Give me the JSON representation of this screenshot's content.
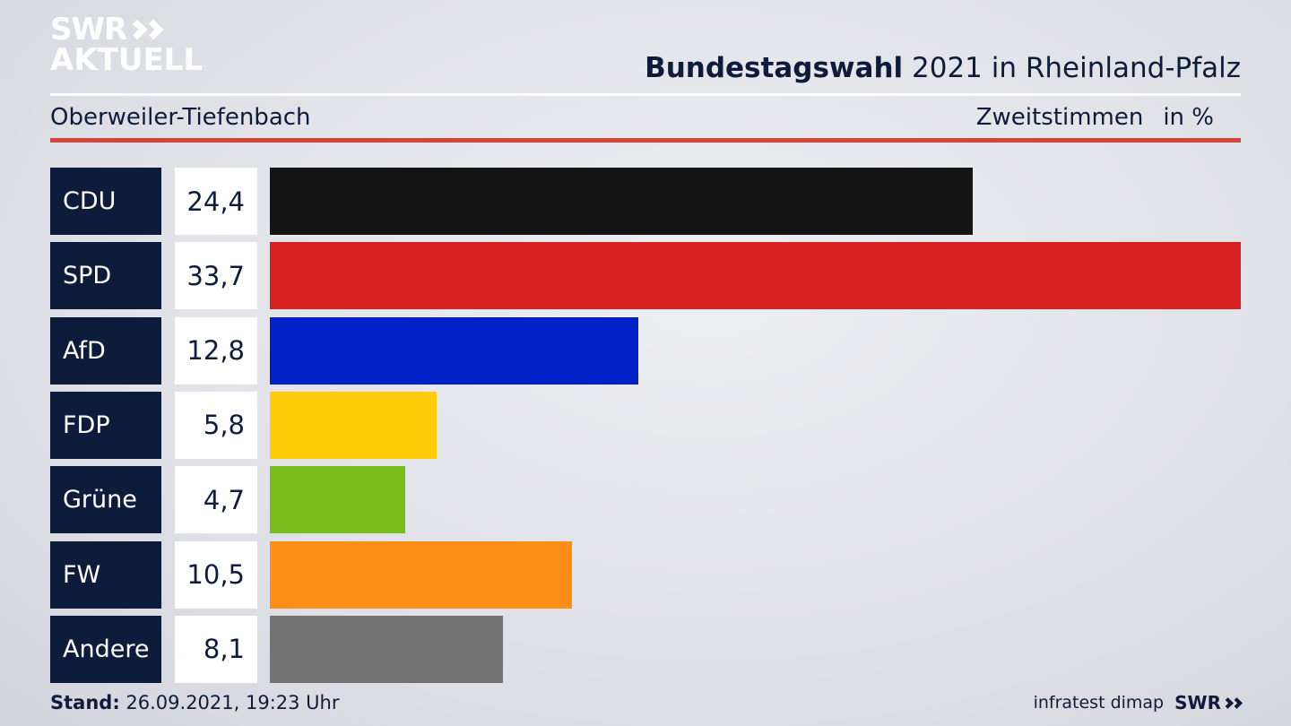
{
  "brand": {
    "line1": "SWR",
    "line2": "AKTUELL",
    "footer_logo": "SWR",
    "pollster": "infratest dimap"
  },
  "header": {
    "title_bold": "Bundestagswahl",
    "title_rest": " 2021 in Rheinland-Pfalz",
    "region": "Oberweiler-Tiefenbach",
    "measure": "Zweitstimmen",
    "unit": "in %"
  },
  "footer": {
    "stand_label": "Stand:",
    "stand_value": " 26.09.2021, 19:23 Uhr"
  },
  "chart_data": {
    "type": "bar",
    "orientation": "horizontal",
    "categories": [
      "CDU",
      "SPD",
      "AfD",
      "FDP",
      "Grüne",
      "FW",
      "Andere"
    ],
    "values": [
      24.4,
      33.7,
      12.8,
      5.8,
      4.7,
      10.5,
      8.1
    ],
    "value_labels": [
      "24,4",
      "33,7",
      "12,8",
      "5,8",
      "4,7",
      "10,5",
      "8,1"
    ],
    "colors": [
      "#141414",
      "#d92020",
      "#0021c8",
      "#ffcc0a",
      "#79bd1c",
      "#ff8e18",
      "#737373"
    ],
    "xlim": [
      0,
      33.7
    ],
    "grid": false,
    "legend": "none"
  }
}
